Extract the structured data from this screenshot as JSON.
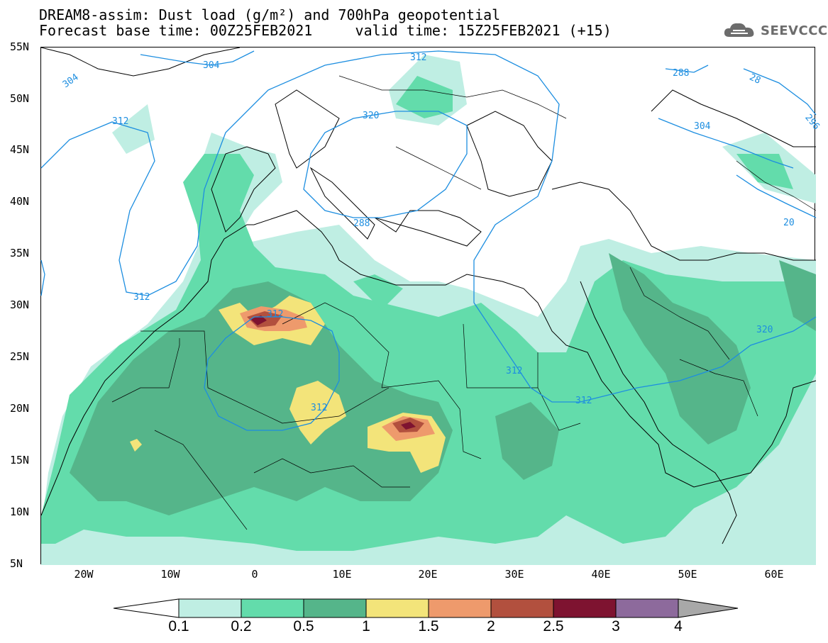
{
  "header": {
    "title": "DREAM8-assim: Dust load (g/m²) and 700hPa geopotential",
    "forecast_base": "Forecast base time: 00Z25FEB2021",
    "valid_time": "valid time: 15Z25FEB2021 (+15)"
  },
  "logo": {
    "text": "SEEVCCC",
    "icon": "cloud-icon"
  },
  "axes": {
    "lat_labels": [
      "55N",
      "50N",
      "45N",
      "40N",
      "35N",
      "30N",
      "25N",
      "20N",
      "15N",
      "10N",
      "5N"
    ],
    "lon_labels": [
      "20W",
      "10W",
      "0",
      "10E",
      "20E",
      "30E",
      "40E",
      "50E",
      "60E"
    ]
  },
  "contours": {
    "labels": [
      "304",
      "304",
      "312",
      "312",
      "312",
      "312",
      "312",
      "312",
      "312",
      "320",
      "320",
      "288",
      "288",
      "28",
      "296",
      "304",
      "20"
    ]
  },
  "legend": {
    "ticks": [
      "0.1",
      "0.2",
      "0.5",
      "1",
      "1.5",
      "2",
      "2.5",
      "3",
      "4"
    ],
    "colors": [
      "#ffffff",
      "#bfeee3",
      "#63dcab",
      "#55b58a",
      "#f3e47a",
      "#ee9a6c",
      "#b2503e",
      "#7e1330",
      "#8d6a9c",
      "#a8a8a8"
    ]
  },
  "colors": {
    "coast": "#000000",
    "contour": "#1d8ee0"
  }
}
